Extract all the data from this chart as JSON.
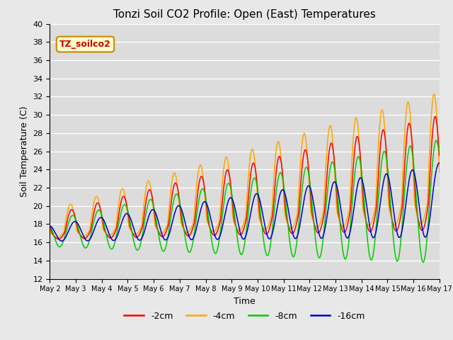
{
  "title": "Tonzi Soil CO2 Profile: Open (East) Temperatures",
  "xlabel": "Time",
  "ylabel": "Soil Temperature (C)",
  "ylim": [
    12,
    40
  ],
  "yticks": [
    12,
    14,
    16,
    18,
    20,
    22,
    24,
    26,
    28,
    30,
    32,
    34,
    36,
    38,
    40
  ],
  "colors": {
    "-2cm": "#ff0000",
    "-4cm": "#ffa500",
    "-8cm": "#00cc00",
    "-16cm": "#0000cc"
  },
  "legend_label": "TZ_soilco2",
  "legend_box_color": "#ffffcc",
  "legend_box_edge": "#cc8800",
  "bg_color": "#dcdcdc",
  "grid_color": "#ffffff"
}
